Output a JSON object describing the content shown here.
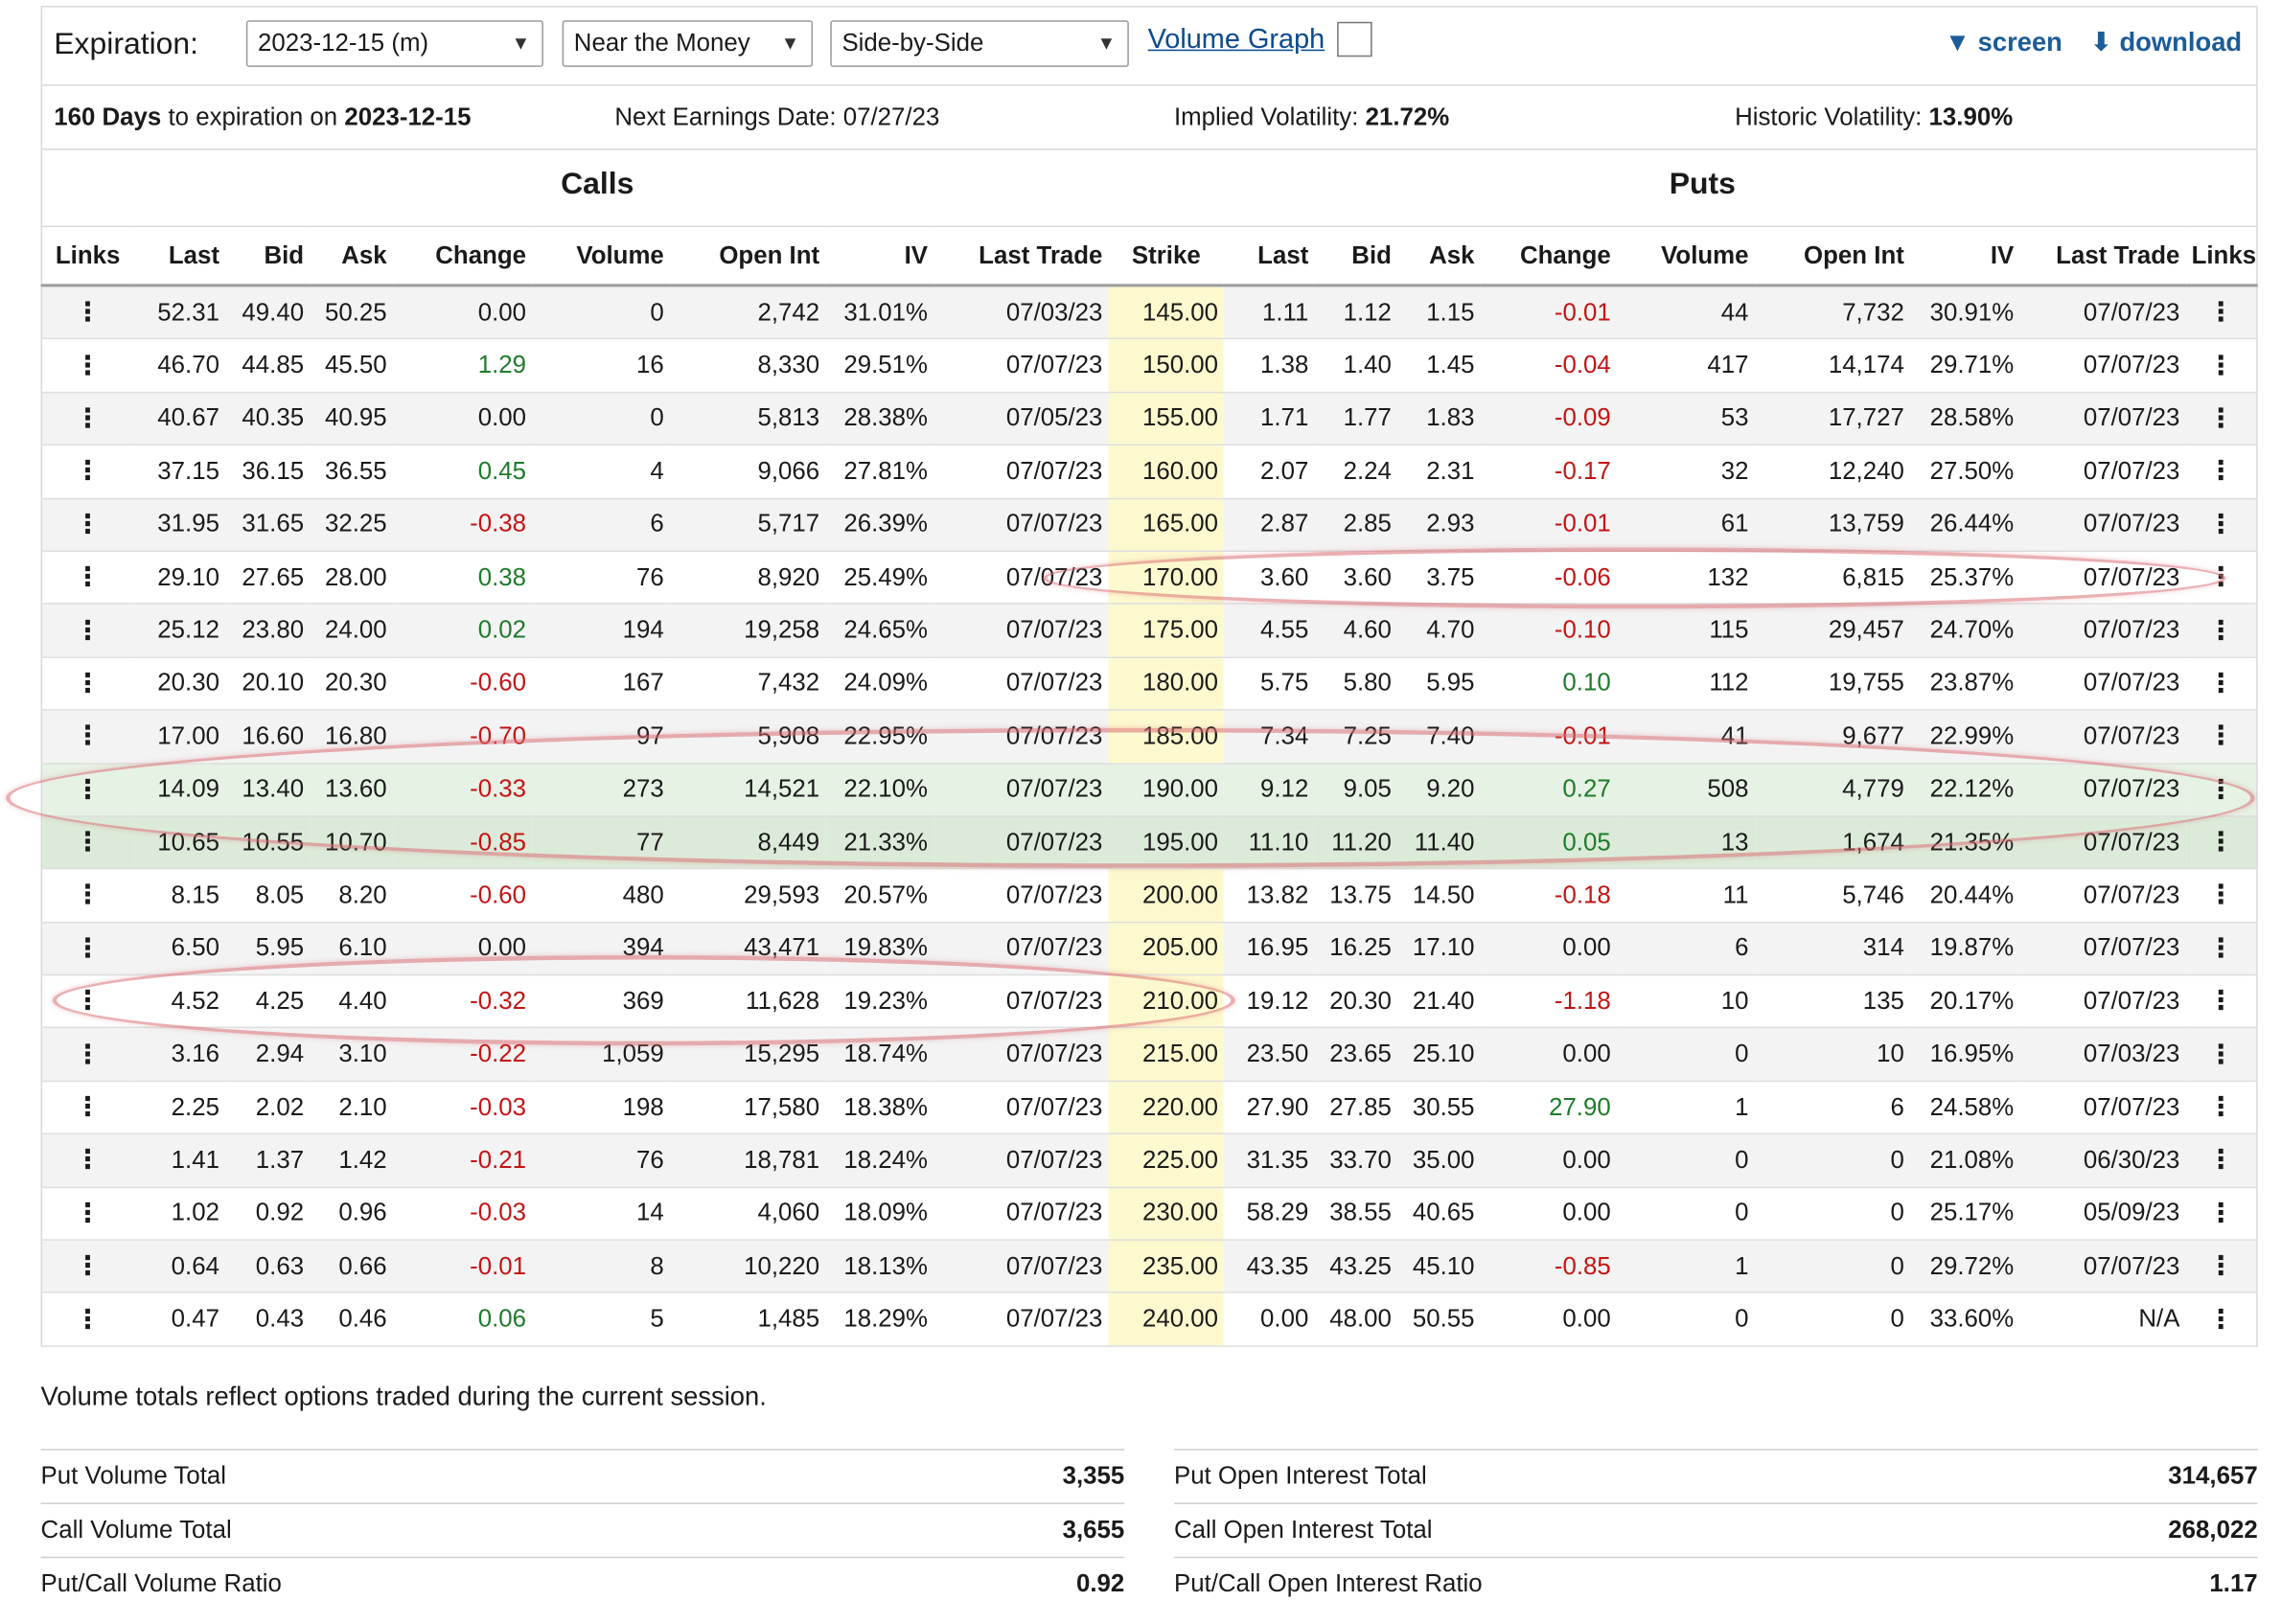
{
  "toolbar": {
    "expiration_label": "Expiration:",
    "expiration_value": "2023-12-15 (m)",
    "range_value": "Near the Money",
    "layout_value": "Side-by-Side",
    "volume_graph_label": "Volume Graph",
    "screen_label": "screen",
    "download_label": "download"
  },
  "info": {
    "days": "160 Days",
    "expiration_text": "to expiration on",
    "expiration_date": "2023-12-15",
    "earnings": "Next Earnings Date: 07/27/23",
    "iv_label": "Implied Volatility:",
    "iv_value": "21.72%",
    "hv_label": "Historic Volatility:",
    "hv_value": "13.90%"
  },
  "sections": {
    "calls": "Calls",
    "puts": "Puts"
  },
  "columns": [
    "Links",
    "Last",
    "Bid",
    "Ask",
    "Change",
    "Volume",
    "Open Int",
    "IV",
    "Last Trade",
    "Strike",
    "Last",
    "Bid",
    "Ask",
    "Change",
    "Volume",
    "Open Int",
    "IV",
    "Last Trade",
    "Links"
  ],
  "rows": [
    {
      "c": [
        "52.31",
        "49.40",
        "50.25",
        "0.00",
        "0",
        "2,742",
        "31.01%",
        "07/03/23"
      ],
      "s": "145.00",
      "p": [
        "1.11",
        "1.12",
        "1.15",
        "-0.01",
        "44",
        "7,732",
        "30.91%",
        "07/07/23"
      ]
    },
    {
      "c": [
        "46.70",
        "44.85",
        "45.50",
        "1.29",
        "16",
        "8,330",
        "29.51%",
        "07/07/23"
      ],
      "s": "150.00",
      "p": [
        "1.38",
        "1.40",
        "1.45",
        "-0.04",
        "417",
        "14,174",
        "29.71%",
        "07/07/23"
      ]
    },
    {
      "c": [
        "40.67",
        "40.35",
        "40.95",
        "0.00",
        "0",
        "5,813",
        "28.38%",
        "07/05/23"
      ],
      "s": "155.00",
      "p": [
        "1.71",
        "1.77",
        "1.83",
        "-0.09",
        "53",
        "17,727",
        "28.58%",
        "07/07/23"
      ]
    },
    {
      "c": [
        "37.15",
        "36.15",
        "36.55",
        "0.45",
        "4",
        "9,066",
        "27.81%",
        "07/07/23"
      ],
      "s": "160.00",
      "p": [
        "2.07",
        "2.24",
        "2.31",
        "-0.17",
        "32",
        "12,240",
        "27.50%",
        "07/07/23"
      ]
    },
    {
      "c": [
        "31.95",
        "31.65",
        "32.25",
        "-0.38",
        "6",
        "5,717",
        "26.39%",
        "07/07/23"
      ],
      "s": "165.00",
      "p": [
        "2.87",
        "2.85",
        "2.93",
        "-0.01",
        "61",
        "13,759",
        "26.44%",
        "07/07/23"
      ]
    },
    {
      "c": [
        "29.10",
        "27.65",
        "28.00",
        "0.38",
        "76",
        "8,920",
        "25.49%",
        "07/07/23"
      ],
      "s": "170.00",
      "p": [
        "3.60",
        "3.60",
        "3.75",
        "-0.06",
        "132",
        "6,815",
        "25.37%",
        "07/07/23"
      ]
    },
    {
      "c": [
        "25.12",
        "23.80",
        "24.00",
        "0.02",
        "194",
        "19,258",
        "24.65%",
        "07/07/23"
      ],
      "s": "175.00",
      "p": [
        "4.55",
        "4.60",
        "4.70",
        "-0.10",
        "115",
        "29,457",
        "24.70%",
        "07/07/23"
      ]
    },
    {
      "c": [
        "20.30",
        "20.10",
        "20.30",
        "-0.60",
        "167",
        "7,432",
        "24.09%",
        "07/07/23"
      ],
      "s": "180.00",
      "p": [
        "5.75",
        "5.80",
        "5.95",
        "0.10",
        "112",
        "19,755",
        "23.87%",
        "07/07/23"
      ]
    },
    {
      "c": [
        "17.00",
        "16.60",
        "16.80",
        "-0.70",
        "97",
        "5,908",
        "22.95%",
        "07/07/23"
      ],
      "s": "185.00",
      "p": [
        "7.34",
        "7.25",
        "7.40",
        "-0.01",
        "41",
        "9,677",
        "22.99%",
        "07/07/23"
      ]
    },
    {
      "c": [
        "14.09",
        "13.40",
        "13.60",
        "-0.33",
        "273",
        "14,521",
        "22.10%",
        "07/07/23"
      ],
      "s": "190.00",
      "p": [
        "9.12",
        "9.05",
        "9.20",
        "0.27",
        "508",
        "4,779",
        "22.12%",
        "07/07/23"
      ]
    },
    {
      "c": [
        "10.65",
        "10.55",
        "10.70",
        "-0.85",
        "77",
        "8,449",
        "21.33%",
        "07/07/23"
      ],
      "s": "195.00",
      "p": [
        "11.10",
        "11.20",
        "11.40",
        "0.05",
        "13",
        "1,674",
        "21.35%",
        "07/07/23"
      ]
    },
    {
      "c": [
        "8.15",
        "8.05",
        "8.20",
        "-0.60",
        "480",
        "29,593",
        "20.57%",
        "07/07/23"
      ],
      "s": "200.00",
      "p": [
        "13.82",
        "13.75",
        "14.50",
        "-0.18",
        "11",
        "5,746",
        "20.44%",
        "07/07/23"
      ]
    },
    {
      "c": [
        "6.50",
        "5.95",
        "6.10",
        "0.00",
        "394",
        "43,471",
        "19.83%",
        "07/07/23"
      ],
      "s": "205.00",
      "p": [
        "16.95",
        "16.25",
        "17.10",
        "0.00",
        "6",
        "314",
        "19.87%",
        "07/07/23"
      ]
    },
    {
      "c": [
        "4.52",
        "4.25",
        "4.40",
        "-0.32",
        "369",
        "11,628",
        "19.23%",
        "07/07/23"
      ],
      "s": "210.00",
      "p": [
        "19.12",
        "20.30",
        "21.40",
        "-1.18",
        "10",
        "135",
        "20.17%",
        "07/07/23"
      ]
    },
    {
      "c": [
        "3.16",
        "2.94",
        "3.10",
        "-0.22",
        "1,059",
        "15,295",
        "18.74%",
        "07/07/23"
      ],
      "s": "215.00",
      "p": [
        "23.50",
        "23.65",
        "25.10",
        "0.00",
        "0",
        "10",
        "16.95%",
        "07/03/23"
      ]
    },
    {
      "c": [
        "2.25",
        "2.02",
        "2.10",
        "-0.03",
        "198",
        "17,580",
        "18.38%",
        "07/07/23"
      ],
      "s": "220.00",
      "p": [
        "27.90",
        "27.85",
        "30.55",
        "27.90",
        "1",
        "6",
        "24.58%",
        "07/07/23"
      ]
    },
    {
      "c": [
        "1.41",
        "1.37",
        "1.42",
        "-0.21",
        "76",
        "18,781",
        "18.24%",
        "07/07/23"
      ],
      "s": "225.00",
      "p": [
        "31.35",
        "33.70",
        "35.00",
        "0.00",
        "0",
        "0",
        "21.08%",
        "06/30/23"
      ]
    },
    {
      "c": [
        "1.02",
        "0.92",
        "0.96",
        "-0.03",
        "14",
        "4,060",
        "18.09%",
        "07/07/23"
      ],
      "s": "230.00",
      "p": [
        "58.29",
        "38.55",
        "40.65",
        "0.00",
        "0",
        "0",
        "25.17%",
        "05/09/23"
      ]
    },
    {
      "c": [
        "0.64",
        "0.63",
        "0.66",
        "-0.01",
        "8",
        "10,220",
        "18.13%",
        "07/07/23"
      ],
      "s": "235.00",
      "p": [
        "43.35",
        "43.25",
        "45.10",
        "-0.85",
        "1",
        "0",
        "29.72%",
        "07/07/23"
      ]
    },
    {
      "c": [
        "0.47",
        "0.43",
        "0.46",
        "0.06",
        "5",
        "1,485",
        "18.29%",
        "07/07/23"
      ],
      "s": "240.00",
      "p": [
        "0.00",
        "48.00",
        "50.55",
        "0.00",
        "0",
        "0",
        "33.60%",
        "N/A"
      ]
    }
  ],
  "colors": {
    "positive": "#1e7b2b",
    "negative": "#c41414",
    "strike_bg": "#fdf9cf",
    "itm_bg": "#dcebd9",
    "link": "#1b5c99"
  },
  "footer": {
    "note": "Volume totals reflect options traded during the current session.",
    "left": [
      {
        "label": "Put Volume Total",
        "value": "3,355"
      },
      {
        "label": "Call Volume Total",
        "value": "3,655"
      },
      {
        "label": "Put/Call Volume Ratio",
        "value": "0.92"
      }
    ],
    "right": [
      {
        "label": "Put Open Interest Total",
        "value": "314,657"
      },
      {
        "label": "Call Open Interest Total",
        "value": "268,022"
      },
      {
        "label": "Put/Call Open Interest Ratio",
        "value": "1.17"
      }
    ]
  }
}
